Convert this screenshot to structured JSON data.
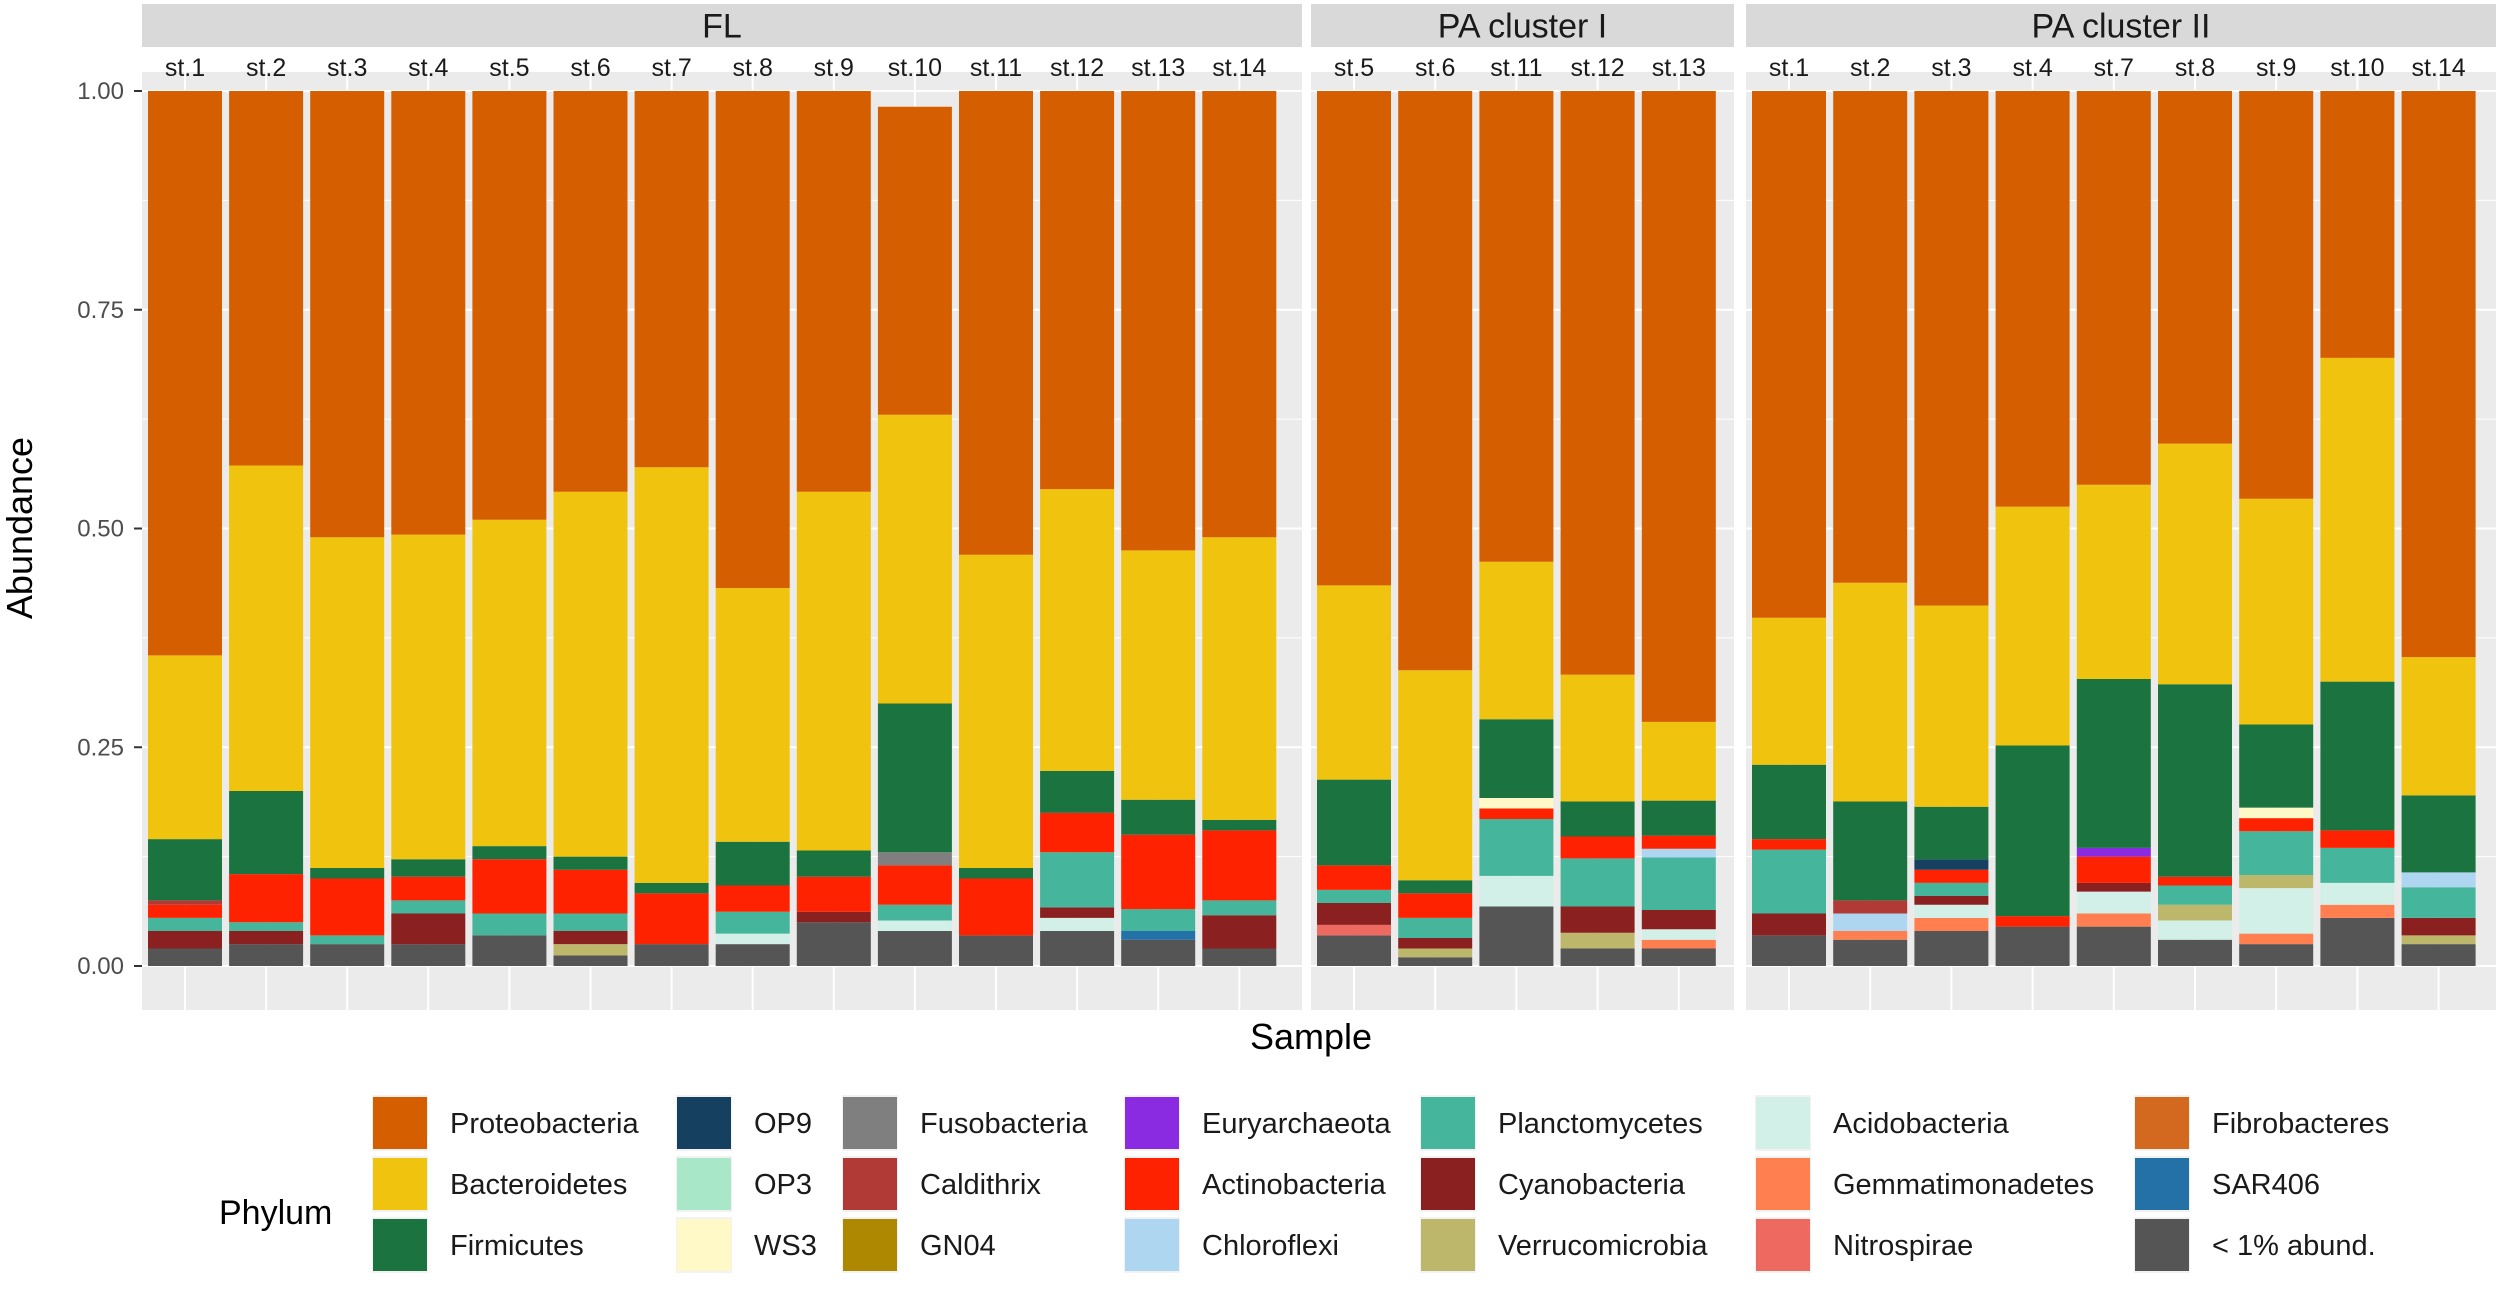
{
  "chart_data": {
    "type": "bar",
    "stacked": true,
    "xlabel": "Sample",
    "ylabel": "Abundance",
    "ylim": [
      0,
      1
    ],
    "yticks": [
      "0.00",
      "0.25",
      "0.50",
      "0.75",
      "1.00"
    ],
    "legend_title": "Phylum",
    "legend_position": "bottom",
    "phyla": [
      {
        "name": "Proteobacteria",
        "color": "#D55E00"
      },
      {
        "name": "Bacteroidetes",
        "color": "#F0C30F"
      },
      {
        "name": "Firmicutes",
        "color": "#1B7340"
      },
      {
        "name": "OP9",
        "color": "#15405F"
      },
      {
        "name": "OP3",
        "color": "#A8E8C8"
      },
      {
        "name": "WS3",
        "color": "#FFF9C8"
      },
      {
        "name": "Fusobacteria",
        "color": "#7F7F7F"
      },
      {
        "name": "Caldithrix",
        "color": "#B23A36"
      },
      {
        "name": "GN04",
        "color": "#AE8800"
      },
      {
        "name": "Euryarchaeota",
        "color": "#8A2BE2"
      },
      {
        "name": "Actinobacteria",
        "color": "#FF2200"
      },
      {
        "name": "Chloroflexi",
        "color": "#AED6F0"
      },
      {
        "name": "Planctomycetes",
        "color": "#45B59B"
      },
      {
        "name": "Cyanobacteria",
        "color": "#8B2020"
      },
      {
        "name": "Verrucomicrobia",
        "color": "#BDB76B"
      },
      {
        "name": "Acidobacteria",
        "color": "#D2F0E8"
      },
      {
        "name": "Gemmatimonadetes",
        "color": "#FF7F50"
      },
      {
        "name": "Nitrospirae",
        "color": "#EE6A60"
      },
      {
        "name": "Fibrobacteres",
        "color": "#D2691E"
      },
      {
        "name": "SAR406",
        "color": "#2471A8"
      },
      {
        "name": "< 1% abund.",
        "color": "#555555"
      }
    ],
    "panels": [
      {
        "title": "FL",
        "samples": [
          {
            "name": "st.1",
            "values": {
              "< 1% abund.": 0.02,
              "Cyanobacteria": 0.02,
              "Caldithrix": 0.005,
              "Planctomycetes": 0.015,
              "Actinobacteria": 0.015,
              "Firmicutes": 0.07,
              "Bacteroidetes": 0.21,
              "Proteobacteria": 0.645
            }
          },
          {
            "name": "st.2",
            "values": {
              "< 1% abund.": 0.025,
              "Cyanobacteria": 0.015,
              "Planctomycetes": 0.01,
              "Actinobacteria": 0.055,
              "Firmicutes": 0.095,
              "Bacteroidetes": 0.372,
              "Proteobacteria": 0.428
            }
          },
          {
            "name": "st.3",
            "values": {
              "< 1% abund.": 0.025,
              "Planctomycetes": 0.01,
              "Actinobacteria": 0.065,
              "Firmicutes": 0.012,
              "Bacteroidetes": 0.378,
              "Proteobacteria": 0.51
            }
          },
          {
            "name": "st.4",
            "values": {
              "< 1% abund.": 0.025,
              "Cyanobacteria": 0.035,
              "Planctomycetes": 0.015,
              "Actinobacteria": 0.027,
              "Firmicutes": 0.02,
              "Bacteroidetes": 0.371,
              "Proteobacteria": 0.507
            }
          },
          {
            "name": "st.5",
            "values": {
              "< 1% abund.": 0.035,
              "Planctomycetes": 0.025,
              "Actinobacteria": 0.062,
              "Firmicutes": 0.015,
              "Bacteroidetes": 0.373,
              "Proteobacteria": 0.49
            }
          },
          {
            "name": "st.6",
            "values": {
              "< 1% abund.": 0.012,
              "Verrucomicrobia": 0.013,
              "Cyanobacteria": 0.015,
              "Planctomycetes": 0.02,
              "Actinobacteria": 0.05,
              "Firmicutes": 0.015,
              "Bacteroidetes": 0.417,
              "Proteobacteria": 0.458
            }
          },
          {
            "name": "st.7",
            "values": {
              "< 1% abund.": 0.025,
              "Actinobacteria": 0.058,
              "Firmicutes": 0.012,
              "Bacteroidetes": 0.475,
              "Proteobacteria": 0.43
            }
          },
          {
            "name": "st.8",
            "values": {
              "< 1% abund.": 0.025,
              "Acidobacteria": 0.012,
              "Planctomycetes": 0.025,
              "Actinobacteria": 0.03,
              "Firmicutes": 0.05,
              "Bacteroidetes": 0.29,
              "Proteobacteria": 0.568
            }
          },
          {
            "name": "st.9",
            "values": {
              "< 1% abund.": 0.05,
              "Cyanobacteria": 0.012,
              "Actinobacteria": 0.04,
              "Firmicutes": 0.03,
              "Bacteroidetes": 0.41,
              "Proteobacteria": 0.458
            }
          },
          {
            "name": "st.10",
            "values": {
              "< 1% abund.": 0.04,
              "Acidobacteria": 0.012,
              "Planctomycetes": 0.018,
              "Actinobacteria": 0.045,
              "Fusobacteria": 0.015,
              "Firmicutes": 0.17,
              "Bacteroidetes": 0.33,
              "Proteobacteria": 0.352
            }
          },
          {
            "name": "st.11",
            "values": {
              "< 1% abund.": 0.035,
              "Actinobacteria": 0.065,
              "Firmicutes": 0.012,
              "Bacteroidetes": 0.358,
              "Proteobacteria": 0.53
            }
          },
          {
            "name": "st.12",
            "values": {
              "< 1% abund.": 0.04,
              "Acidobacteria": 0.015,
              "Cyanobacteria": 0.012,
              "Planctomycetes": 0.063,
              "Actinobacteria": 0.045,
              "Firmicutes": 0.048,
              "Bacteroidetes": 0.322,
              "Proteobacteria": 0.455
            }
          },
          {
            "name": "st.13",
            "values": {
              "< 1% abund.": 0.03,
              "SAR406": 0.01,
              "Planctomycetes": 0.025,
              "Actinobacteria": 0.085,
              "Firmicutes": 0.04,
              "Bacteroidetes": 0.285,
              "Proteobacteria": 0.525
            }
          },
          {
            "name": "st.14",
            "values": {
              "< 1% abund.": 0.02,
              "Cyanobacteria": 0.038,
              "Planctomycetes": 0.017,
              "Actinobacteria": 0.08,
              "Firmicutes": 0.012,
              "Bacteroidetes": 0.323,
              "Proteobacteria": 0.51
            }
          }
        ]
      },
      {
        "title": "PA cluster I",
        "samples": [
          {
            "name": "st.5",
            "values": {
              "< 1% abund.": 0.035,
              "Nitrospirae": 0.012,
              "Cyanobacteria": 0.025,
              "Planctomycetes": 0.015,
              "Actinobacteria": 0.028,
              "Firmicutes": 0.098,
              "Bacteroidetes": 0.222,
              "Proteobacteria": 0.565
            }
          },
          {
            "name": "st.6",
            "values": {
              "< 1% abund.": 0.01,
              "Verrucomicrobia": 0.01,
              "Cyanobacteria": 0.012,
              "Planctomycetes": 0.023,
              "Actinobacteria": 0.028,
              "Firmicutes": 0.015,
              "Bacteroidetes": 0.24,
              "Proteobacteria": 0.662
            }
          },
          {
            "name": "st.11",
            "values": {
              "< 1% abund.": 0.068,
              "Acidobacteria": 0.035,
              "Planctomycetes": 0.065,
              "Actinobacteria": 0.012,
              "WS3": 0.012,
              "Firmicutes": 0.09,
              "Bacteroidetes": 0.18,
              "Proteobacteria": 0.538
            }
          },
          {
            "name": "st.12",
            "values": {
              "< 1% abund.": 0.02,
              "Verrucomicrobia": 0.018,
              "Cyanobacteria": 0.03,
              "Planctomycetes": 0.055,
              "Actinobacteria": 0.025,
              "Firmicutes": 0.04,
              "Bacteroidetes": 0.145,
              "Proteobacteria": 0.667
            }
          },
          {
            "name": "st.13",
            "values": {
              "< 1% abund.": 0.02,
              "Gemmatimonadetes": 0.01,
              "Acidobacteria": 0.012,
              "Cyanobacteria": 0.022,
              "Planctomycetes": 0.06,
              "Chloroflexi": 0.01,
              "Actinobacteria": 0.015,
              "Firmicutes": 0.04,
              "Bacteroidetes": 0.09,
              "Proteobacteria": 0.721
            }
          }
        ]
      },
      {
        "title": "PA cluster II",
        "samples": [
          {
            "name": "st.1",
            "values": {
              "< 1% abund.": 0.035,
              "Cyanobacteria": 0.025,
              "Planctomycetes": 0.073,
              "Actinobacteria": 0.012,
              "Firmicutes": 0.085,
              "Bacteroidetes": 0.168,
              "Proteobacteria": 0.602
            }
          },
          {
            "name": "st.2",
            "values": {
              "< 1% abund.": 0.03,
              "Gemmatimonadetes": 0.01,
              "Chloroflexi": 0.02,
              "Caldithrix": 0.015,
              "Firmicutes": 0.113,
              "Bacteroidetes": 0.25,
              "Proteobacteria": 0.562
            }
          },
          {
            "name": "st.3",
            "values": {
              "< 1% abund.": 0.04,
              "Gemmatimonadetes": 0.015,
              "Acidobacteria": 0.015,
              "Planctomycetes": 0.015,
              "Actinobacteria": 0.015,
              "Cyanobacteria": 0.01,
              "OP9": 0.012,
              "Firmicutes": 0.06,
              "Bacteroidetes": 0.23,
              "Proteobacteria": 0.588
            }
          },
          {
            "name": "st.4",
            "values": {
              "< 1% abund.": 0.045,
              "Actinobacteria": 0.012,
              "Firmicutes": 0.195,
              "Bacteroidetes": 0.273,
              "Proteobacteria": 0.475
            }
          },
          {
            "name": "st.7",
            "values": {
              "< 1% abund.": 0.045,
              "Gemmatimonadetes": 0.015,
              "Acidobacteria": 0.025,
              "Cyanobacteria": 0.01,
              "Actinobacteria": 0.03,
              "Euryarchaeota": 0.01,
              "Firmicutes": 0.193,
              "Bacteroidetes": 0.222,
              "Proteobacteria": 0.45
            }
          },
          {
            "name": "st.8",
            "values": {
              "< 1% abund.": 0.03,
              "Verrucomicrobia": 0.018,
              "Acidobacteria": 0.022,
              "Planctomycetes": 0.022,
              "Actinobacteria": 0.01,
              "Firmicutes": 0.22,
              "Bacteroidetes": 0.275,
              "Proteobacteria": 0.403
            }
          },
          {
            "name": "st.9",
            "values": {
              "< 1% abund.": 0.025,
              "Gemmatimonadetes": 0.012,
              "Acidobacteria": 0.052,
              "Planctomycetes": 0.05,
              "Actinobacteria": 0.015,
              "Verrucomicrobia": 0.015,
              "WS3": 0.012,
              "Firmicutes": 0.095,
              "Bacteroidetes": 0.258,
              "Proteobacteria": 0.466
            }
          },
          {
            "name": "st.10",
            "values": {
              "< 1% abund.": 0.055,
              "Gemmatimonadetes": 0.015,
              "Acidobacteria": 0.025,
              "Planctomycetes": 0.04,
              "Actinobacteria": 0.02,
              "Firmicutes": 0.17,
              "Bacteroidetes": 0.37,
              "Proteobacteria": 0.305
            }
          },
          {
            "name": "st.14",
            "values": {
              "< 1% abund.": 0.025,
              "Verrucomicrobia": 0.01,
              "Cyanobacteria": 0.02,
              "Planctomycetes": 0.035,
              "Chloroflexi": 0.017,
              "Firmicutes": 0.088,
              "Bacteroidetes": 0.158,
              "Proteobacteria": 0.647
            }
          }
        ]
      }
    ]
  }
}
